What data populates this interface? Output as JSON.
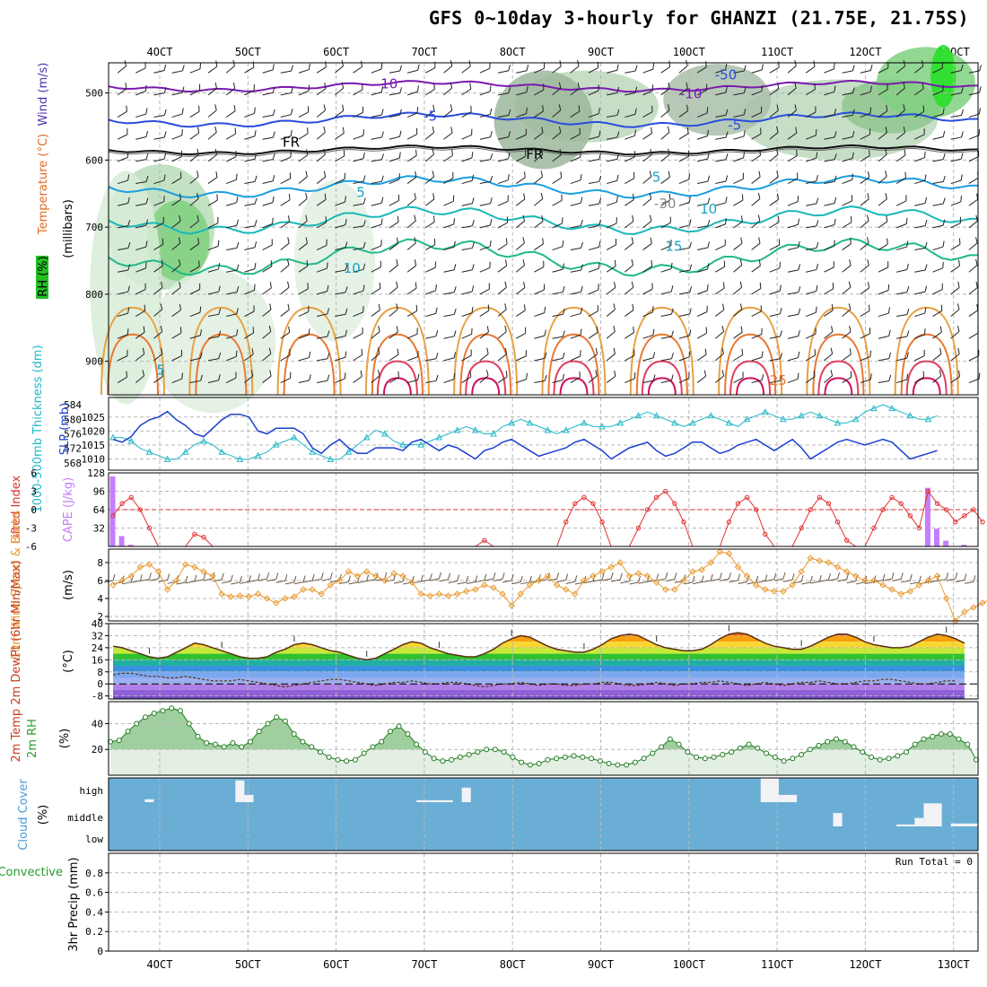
{
  "title": "GFS 0~10day 3-hourly for GHANZI (21.75E, 21.75S)",
  "dates": [
    "4OCT",
    "5OCT",
    "6OCT",
    "7OCT",
    "8OCT",
    "9OCT",
    "10OCT",
    "11OCT",
    "12OCT",
    "13OCT"
  ],
  "panel_labels": {
    "upper_left": [
      "RH (%)",
      "Temperature (°C)",
      "Wind (m/s)"
    ],
    "upper_right": "(millibars)",
    "slp_left": "1000-500mb Thickness (dm)",
    "slp_right": "SLP (mb)",
    "li_left": "Lifted Index",
    "li_right": "CAPE (J/kg)",
    "wind_left": "10m Wind Speed & Barbs",
    "wind_right": "(m/s)",
    "temp_left": "2m Temp 2m DewPt (6hr Min/Max)",
    "temp_right": "(°C)",
    "rh_left": "2m RH",
    "rh_right": "(%)",
    "cloud_left": "Cloud Cover",
    "cloud_right": "(%)",
    "precip_left": "Total / Rain Convective",
    "precip_right": "3hr Precip (mm)",
    "run_total": "Run Total = 0"
  },
  "colors": {
    "slp": "#1a3fd0",
    "thickness": "#22b8c8",
    "cape": "#c57dff",
    "lifted": "#e03030",
    "wind": "#e89a30",
    "barb": "#6a5a45",
    "rh": "#2a9a2a",
    "cloud": "#6aaed6",
    "cloud_blank": "#f2f2f7"
  },
  "chart_data": [
    {
      "type": "contour",
      "panel": "upper_air",
      "ylabel": "millibars",
      "y_ticks": [
        500,
        600,
        700,
        800,
        900
      ],
      "contour_labels": [
        {
          "text": "-10",
          "tx": 0.32,
          "pressure": 493
        },
        {
          "text": "-10",
          "tx": 0.67,
          "pressure": 508
        },
        {
          "text": "-5",
          "tx": 0.37,
          "pressure": 541
        },
        {
          "text": "-5",
          "tx": 0.72,
          "pressure": 555
        },
        {
          "text": "FR",
          "tx": 0.21,
          "pressure": 580
        },
        {
          "text": "FR",
          "tx": 0.49,
          "pressure": 598
        },
        {
          "text": "5",
          "tx": 0.29,
          "pressure": 655
        },
        {
          "text": "5",
          "tx": 0.63,
          "pressure": 632
        },
        {
          "text": "-30",
          "tx": 0.64,
          "pressure": 672
        },
        {
          "text": "10",
          "tx": 0.69,
          "pressure": 680
        },
        {
          "text": "10",
          "tx": 0.28,
          "pressure": 768
        },
        {
          "text": "15",
          "tx": 0.65,
          "pressure": 735
        },
        {
          "text": "-50",
          "tx": 0.71,
          "pressure": 480
        },
        {
          "text": "5",
          "tx": 0.06,
          "pressure": 920
        },
        {
          "text": "25",
          "tx": 0.77,
          "pressure": 935
        }
      ]
    },
    {
      "type": "line",
      "panel": "slp_thickness",
      "y_left_ticks": [
        568,
        572,
        576,
        580,
        584
      ],
      "y_right_ticks": [
        1010,
        1015,
        1020,
        1025
      ],
      "series": [
        {
          "name": "SLP (mb)",
          "axis": "right",
          "ylim": [
            1006,
            1032
          ],
          "values": [
            1017,
            1016,
            1018,
            1022,
            1024,
            1025,
            1027,
            1024,
            1022,
            1019,
            1018,
            1021,
            1024,
            1026,
            1026,
            1025,
            1020,
            1019,
            1021,
            1021,
            1021,
            1019,
            1014,
            1012,
            1015,
            1017,
            1014,
            1012,
            1012,
            1014,
            1014,
            1014,
            1013,
            1016,
            1017,
            1015,
            1013,
            1015,
            1014,
            1012,
            1010,
            1013,
            1014,
            1016,
            1017,
            1015,
            1013,
            1011,
            1012,
            1013,
            1014,
            1016,
            1017,
            1015,
            1013,
            1010,
            1012,
            1014,
            1015,
            1016,
            1013,
            1011,
            1012,
            1014,
            1016,
            1016,
            1014,
            1012,
            1013,
            1015,
            1016,
            1017,
            1015,
            1013,
            1015,
            1017,
            1014,
            1010,
            1012,
            1014,
            1016,
            1017,
            1016,
            1015,
            1016,
            1017,
            1016,
            1013,
            1010,
            1011,
            1012,
            1013
          ]
        },
        {
          "name": "1000-500mb Thickness (dm)",
          "axis": "left",
          "ylim": [
            566,
            586
          ],
          "values": [
            575,
            575,
            574,
            572,
            571,
            570,
            569,
            569,
            571,
            573,
            574,
            573,
            571,
            570,
            569,
            569,
            570,
            571,
            573,
            574,
            575,
            573,
            571,
            570,
            569,
            569,
            571,
            573,
            575,
            577,
            576,
            574,
            573,
            573,
            573,
            574,
            575,
            576,
            577,
            578,
            577,
            576,
            576,
            578,
            579,
            580,
            579,
            578,
            577,
            576,
            577,
            578,
            579,
            578,
            578,
            578,
            579,
            580,
            581,
            582,
            581,
            580,
            579,
            578,
            579,
            580,
            581,
            580,
            579,
            578,
            580,
            581,
            582,
            581,
            580,
            580,
            581,
            582,
            581,
            580,
            579,
            579,
            580,
            582,
            583,
            584,
            583,
            582,
            581,
            580,
            580,
            581
          ]
        }
      ]
    },
    {
      "type": "bar_line",
      "panel": "lifted_cape",
      "y_left_ticks": [
        "6",
        "3",
        "0",
        "-3",
        "-6"
      ],
      "y_right_ticks": [
        32,
        64,
        96,
        128
      ],
      "cape_bars": [
        {
          "i": 0,
          "v": 122
        },
        {
          "i": 1,
          "v": 18
        },
        {
          "i": 2,
          "v": 3
        },
        {
          "i": 90,
          "v": 102
        },
        {
          "i": 91,
          "v": 31
        },
        {
          "i": 92,
          "v": 10
        },
        {
          "i": 94,
          "v": 3
        }
      ],
      "lifted_index": [
        {
          "i": 0,
          "v": 1
        },
        {
          "i": 1,
          "v": -1
        },
        {
          "i": 2,
          "v": -2
        },
        {
          "i": 3,
          "v": 0
        },
        {
          "i": 4,
          "v": 3
        },
        {
          "i": 5,
          "v": 6
        },
        {
          "i": 8,
          "v": 6
        },
        {
          "i": 9,
          "v": 4
        },
        {
          "i": 10,
          "v": 4.5
        },
        {
          "i": 11,
          "v": 6
        },
        {
          "i": 40,
          "v": 6
        },
        {
          "i": 41,
          "v": 5
        },
        {
          "i": 42,
          "v": 6
        },
        {
          "i": 49,
          "v": 6
        },
        {
          "i": 50,
          "v": 2
        },
        {
          "i": 51,
          "v": -1
        },
        {
          "i": 52,
          "v": -2
        },
        {
          "i": 53,
          "v": -1
        },
        {
          "i": 54,
          "v": 2
        },
        {
          "i": 55,
          "v": 6
        },
        {
          "i": 57,
          "v": 6
        },
        {
          "i": 58,
          "v": 3
        },
        {
          "i": 59,
          "v": 0
        },
        {
          "i": 60,
          "v": -2
        },
        {
          "i": 61,
          "v": -3
        },
        {
          "i": 62,
          "v": -1
        },
        {
          "i": 63,
          "v": 2
        },
        {
          "i": 64,
          "v": 6
        },
        {
          "i": 67,
          "v": 6
        },
        {
          "i": 68,
          "v": 2
        },
        {
          "i": 69,
          "v": -1
        },
        {
          "i": 70,
          "v": -2
        },
        {
          "i": 71,
          "v": 0
        },
        {
          "i": 72,
          "v": 4
        },
        {
          "i": 73,
          "v": 6
        },
        {
          "i": 75,
          "v": 6
        },
        {
          "i": 76,
          "v": 3
        },
        {
          "i": 77,
          "v": 0
        },
        {
          "i": 78,
          "v": -2
        },
        {
          "i": 79,
          "v": -1
        },
        {
          "i": 80,
          "v": 2
        },
        {
          "i": 81,
          "v": 5
        },
        {
          "i": 82,
          "v": 6
        },
        {
          "i": 83,
          "v": 6
        },
        {
          "i": 84,
          "v": 3
        },
        {
          "i": 85,
          "v": 0
        },
        {
          "i": 86,
          "v": -2
        },
        {
          "i": 87,
          "v": -1
        },
        {
          "i": 88,
          "v": 1
        },
        {
          "i": 89,
          "v": 3
        },
        {
          "i": 90,
          "v": -3
        },
        {
          "i": 91,
          "v": -1
        },
        {
          "i": 92,
          "v": 0
        },
        {
          "i": 93,
          "v": 2
        },
        {
          "i": 94,
          "v": 1
        },
        {
          "i": 95,
          "v": 0
        },
        {
          "i": 96,
          "v": 2
        }
      ]
    },
    {
      "type": "line",
      "panel": "wind",
      "y_ticks": [
        2,
        4,
        6,
        8
      ],
      "ylim": [
        1.5,
        9.5
      ],
      "series": [
        {
          "name": "10m Wind Speed",
          "values": [
            5.5,
            6,
            6.5,
            7.5,
            7.8,
            7,
            5,
            6,
            7.8,
            7.5,
            7,
            6.5,
            4.5,
            4.2,
            4.3,
            4.2,
            4.5,
            4,
            3.5,
            4,
            4.2,
            5,
            5,
            4.5,
            5.5,
            6,
            7,
            6.5,
            7,
            6.5,
            6,
            6.8,
            6.5,
            5.8,
            4.5,
            4.3,
            4.5,
            4.3,
            4.5,
            4.8,
            5,
            5.5,
            5.2,
            4.5,
            3.2,
            4.5,
            5.5,
            6,
            6.5,
            5.5,
            5,
            4.5,
            6,
            6.5,
            7,
            7.5,
            8,
            6.5,
            6.8,
            6.5,
            5.8,
            5,
            5,
            6,
            7,
            7.2,
            8,
            9.2,
            9,
            7.5,
            6.5,
            5.5,
            5,
            4.8,
            4.8,
            5.5,
            7,
            8.5,
            8.2,
            8,
            7.5,
            7,
            6.5,
            6,
            6,
            5.5,
            5,
            4.5,
            4.8,
            5.5,
            6,
            6.5,
            4,
            1.5,
            2.5,
            3,
            3.5,
            4
          ]
        }
      ]
    },
    {
      "type": "area",
      "panel": "temperature",
      "y_ticks": [
        -8,
        0,
        8,
        16,
        24,
        32,
        40
      ],
      "ylim": [
        -10,
        40
      ],
      "series": [
        {
          "name": "2m Temp",
          "values": [
            25,
            24,
            22,
            20,
            18,
            17,
            18,
            21,
            24,
            27,
            26,
            24,
            22,
            20,
            18,
            17,
            17,
            18,
            21,
            23,
            26,
            27,
            26,
            24,
            22,
            21,
            19,
            17,
            16,
            17,
            20,
            23,
            26,
            28,
            27,
            24,
            22,
            20,
            19,
            18,
            18,
            20,
            23,
            27,
            30,
            32,
            31,
            28,
            25,
            23,
            22,
            21,
            21,
            23,
            26,
            30,
            32,
            33,
            32,
            29,
            26,
            24,
            23,
            22,
            22,
            23,
            26,
            30,
            33,
            34,
            33,
            30,
            27,
            25,
            24,
            23,
            23,
            25,
            28,
            31,
            33,
            33,
            31,
            28,
            26,
            25,
            24,
            24,
            25,
            28,
            31,
            33,
            32,
            30,
            27
          ]
        },
        {
          "name": "2m DewPt",
          "values": [
            6,
            7,
            7,
            6,
            5,
            5,
            4,
            4,
            5,
            4,
            3,
            2,
            2,
            2,
            3,
            2,
            1,
            0,
            -1,
            -2,
            -1,
            0,
            1,
            2,
            3,
            3,
            2,
            1,
            0,
            -1,
            0,
            1,
            1,
            2,
            1,
            0,
            0,
            1,
            1,
            0,
            -1,
            -2,
            -1,
            0,
            0,
            1,
            0,
            -1,
            0,
            0,
            -1,
            -1,
            0,
            0,
            1,
            1,
            0,
            -1,
            -1,
            0,
            1,
            0,
            -1,
            0,
            0,
            1,
            1,
            2,
            1,
            0,
            -1,
            0,
            1,
            0,
            -1,
            0,
            1,
            1,
            2,
            1,
            0,
            0,
            1,
            2,
            2,
            3,
            3,
            2,
            1,
            0,
            0,
            1,
            2,
            2
          ]
        }
      ]
    },
    {
      "type": "area",
      "panel": "relative_humidity",
      "y_ticks": [
        20,
        40
      ],
      "ylim": [
        0,
        57
      ],
      "series": [
        {
          "name": "2m RH",
          "values": [
            26,
            27,
            34,
            40,
            45,
            48,
            50,
            52,
            50,
            40,
            30,
            25,
            24,
            22,
            25,
            22,
            26,
            34,
            40,
            45,
            42,
            32,
            26,
            22,
            18,
            14,
            12,
            11,
            12,
            17,
            22,
            26,
            34,
            38,
            32,
            24,
            18,
            13,
            11,
            12,
            14,
            16,
            18,
            20,
            20,
            18,
            14,
            10,
            8,
            9,
            12,
            13,
            14,
            15,
            14,
            13,
            11,
            9,
            8,
            8,
            10,
            13,
            17,
            22,
            28,
            24,
            18,
            14,
            13,
            14,
            16,
            18,
            21,
            24,
            21,
            17,
            14,
            11,
            13,
            16,
            20,
            23,
            26,
            28,
            26,
            22,
            18,
            14,
            12,
            13,
            15,
            18,
            24,
            28,
            30,
            32,
            32,
            28,
            24,
            12
          ]
        }
      ]
    },
    {
      "type": "bar",
      "panel": "cloud_cover",
      "y_ticks": [
        "low",
        "middle",
        "high"
      ],
      "blocks": [
        {
          "level": "high",
          "i0": 4,
          "i1": 5,
          "frac": 0.12
        },
        {
          "level": "high",
          "i0": 14,
          "i1": 15,
          "frac": 0.9
        },
        {
          "level": "high",
          "i0": 15,
          "i1": 16,
          "frac": 0.3
        },
        {
          "level": "high",
          "i0": 34,
          "i1": 38,
          "frac": 0.08
        },
        {
          "level": "high",
          "i0": 39,
          "i1": 40,
          "frac": 0.6
        },
        {
          "level": "high",
          "i0": 72,
          "i1": 74,
          "frac": 1.0
        },
        {
          "level": "high",
          "i0": 74,
          "i1": 76,
          "frac": 0.3
        },
        {
          "level": "middle",
          "i0": 80,
          "i1": 81,
          "frac": 0.55
        },
        {
          "level": "middle",
          "i0": 87,
          "i1": 89,
          "frac": 0.08
        },
        {
          "level": "middle",
          "i0": 89,
          "i1": 90,
          "frac": 0.35
        },
        {
          "level": "middle",
          "i0": 90,
          "i1": 92,
          "frac": 0.95
        },
        {
          "level": "middle",
          "i0": 93,
          "i1": 96,
          "frac": 0.12
        }
      ]
    },
    {
      "type": "bar",
      "panel": "precipitation",
      "y_ticks": [
        0,
        0.2,
        0.4,
        0.6,
        0.8
      ],
      "ylim": [
        0,
        1
      ],
      "values": []
    }
  ]
}
